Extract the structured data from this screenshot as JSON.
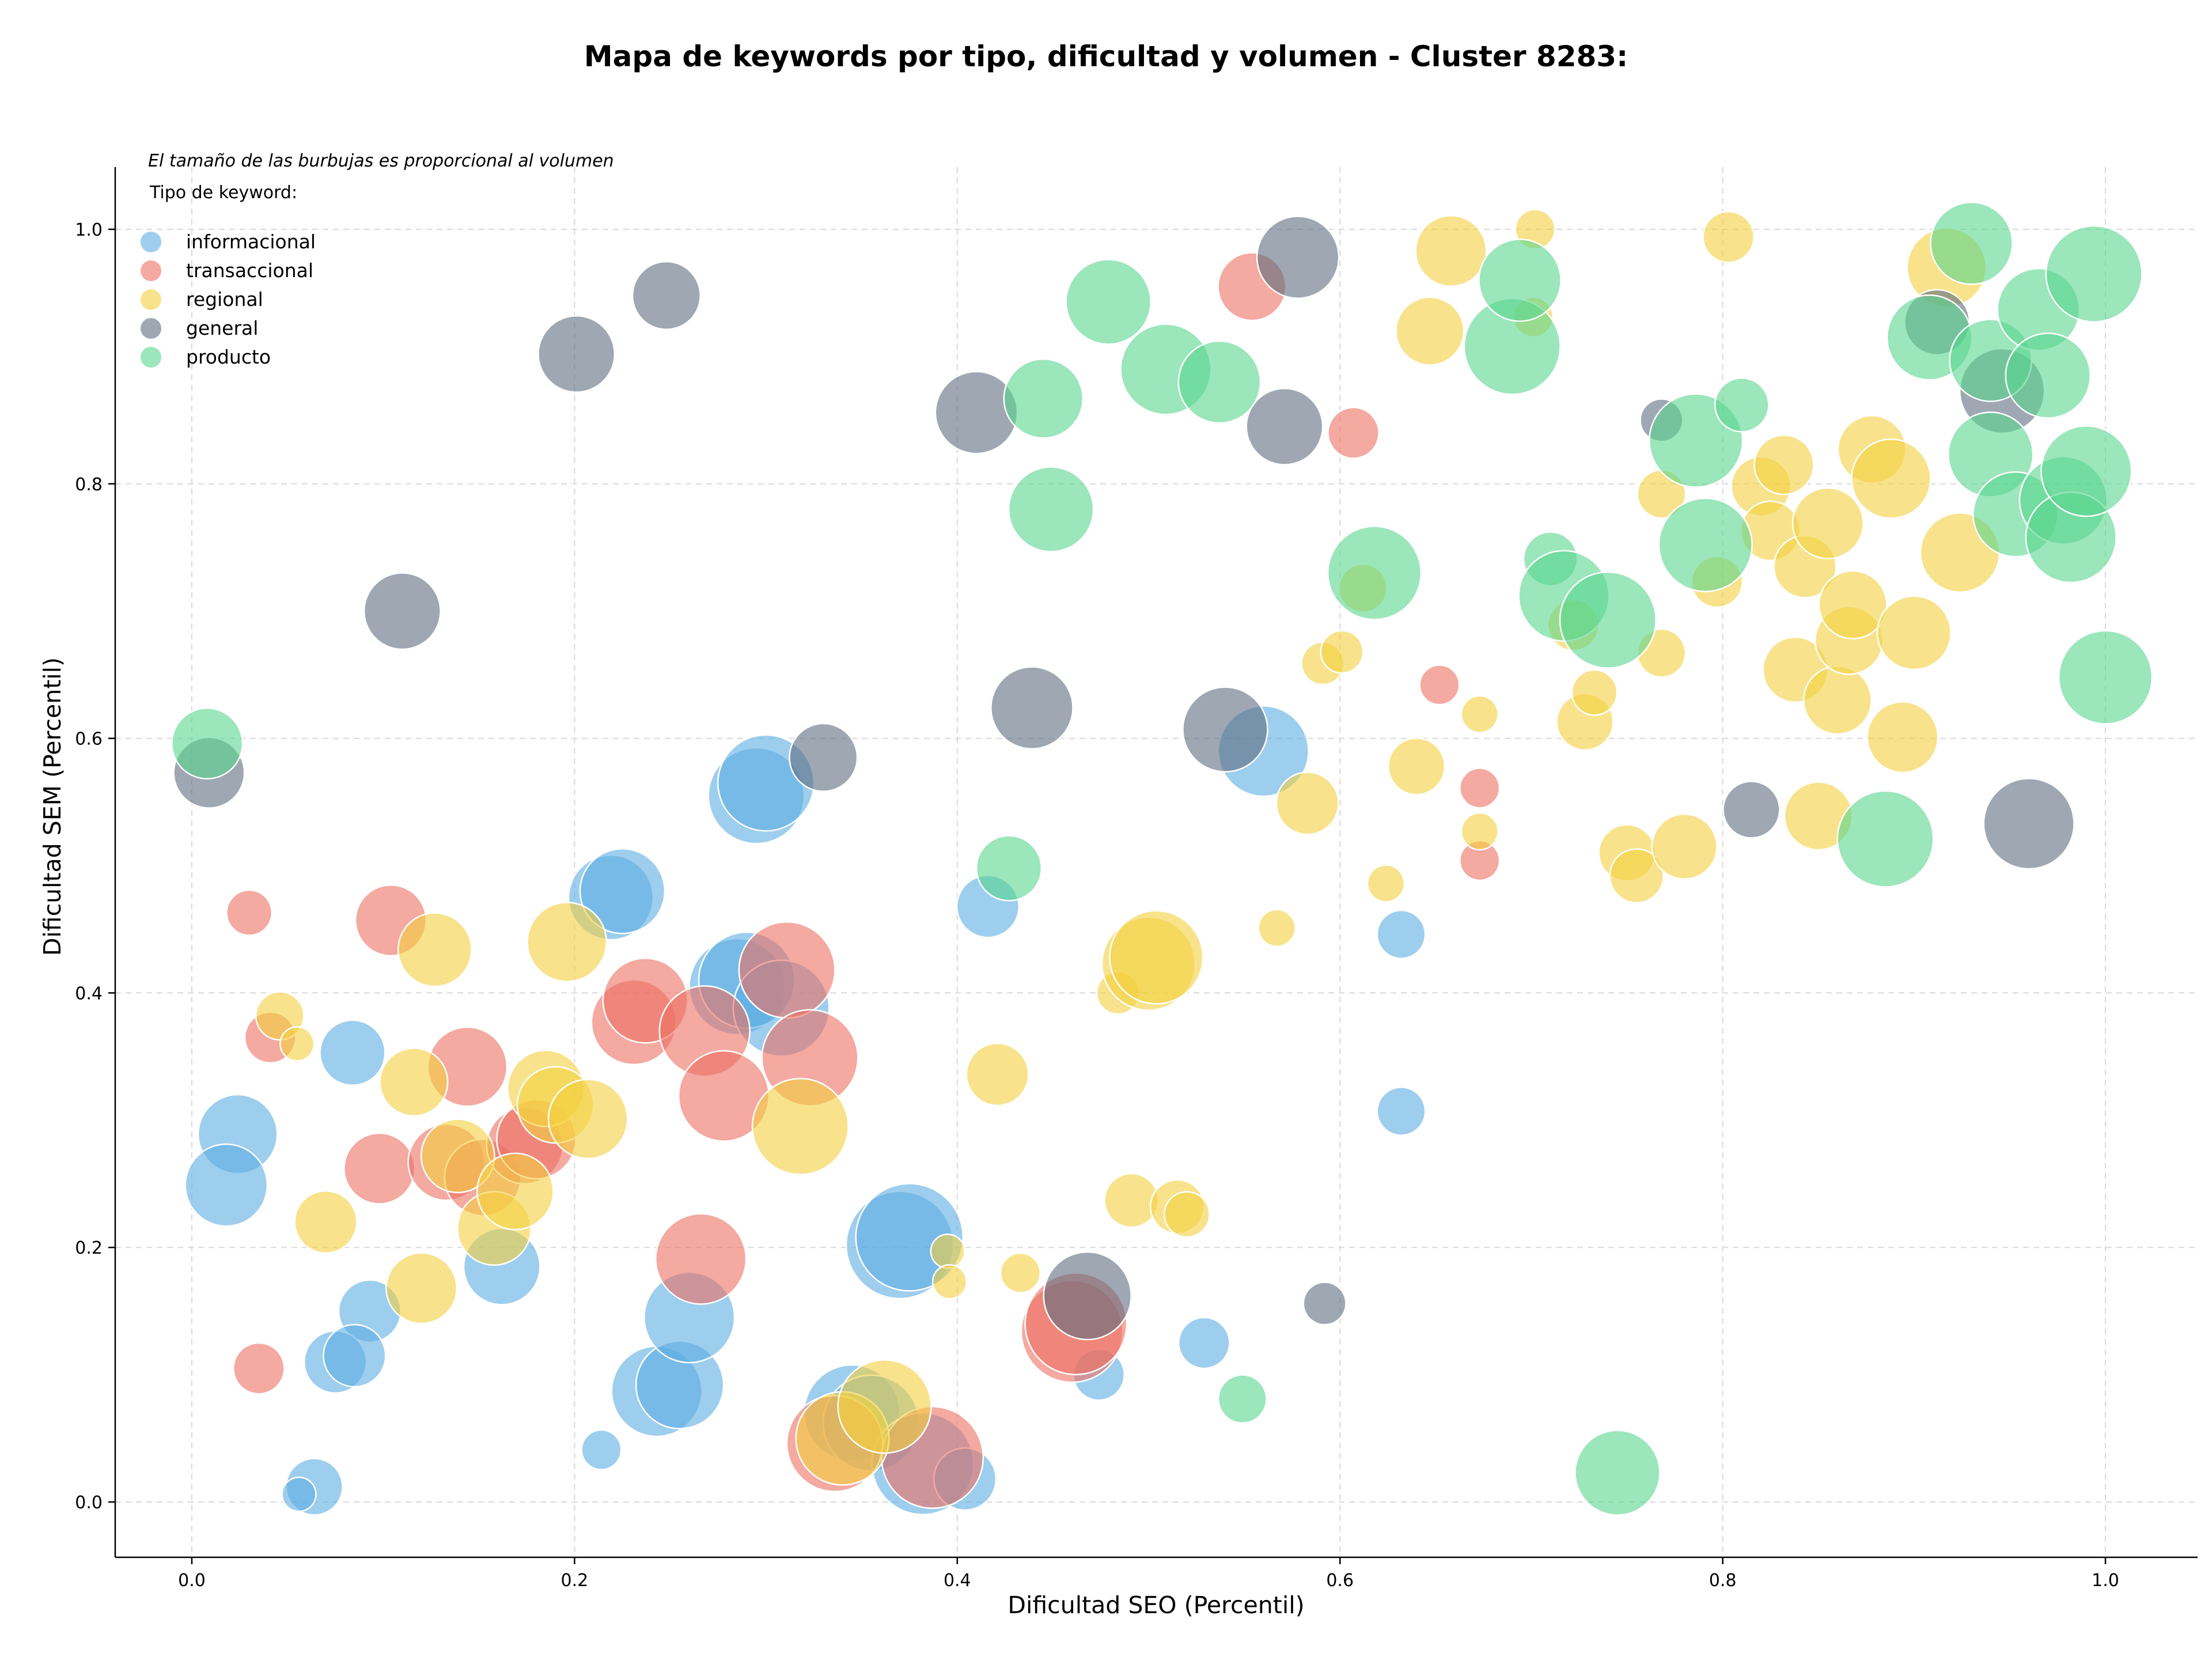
{
  "chart_data": {
    "type": "scatter",
    "title": "Mapa de keywords por tipo, dificultad y volumen - Cluster 8283:",
    "xlabel": "Dificultad SEO (Percentil)",
    "ylabel": "Dificultad SEM (Percentil)",
    "xlim": [
      -0.04,
      1.05
    ],
    "ylim": [
      -0.04,
      1.05
    ],
    "xticks": [
      "0.0",
      "0.2",
      "0.4",
      "0.6",
      "0.8",
      "1.0"
    ],
    "yticks": [
      "0.0",
      "0.2",
      "0.4",
      "0.6",
      "0.8",
      "1.0"
    ],
    "grid": true,
    "legend_position": "top-left",
    "legend_title": "Tipo de keyword:",
    "note": "El tamaño de las burbujas es proporcional al volumen",
    "series": [
      {
        "name": "informacional",
        "color": "#5dade2",
        "points": [
          [
            0.024,
            0.289,
            28
          ],
          [
            0.018,
            0.249,
            29
          ],
          [
            0.084,
            0.353,
            23
          ],
          [
            0.093,
            0.15,
            22
          ],
          [
            0.075,
            0.11,
            22
          ],
          [
            0.085,
            0.115,
            22
          ],
          [
            0.064,
            0.012,
            20
          ],
          [
            0.056,
            0.006,
            12
          ],
          [
            0.162,
            0.185,
            27
          ],
          [
            0.214,
            0.041,
            14
          ],
          [
            0.219,
            0.475,
            30
          ],
          [
            0.225,
            0.48,
            30
          ],
          [
            0.243,
            0.087,
            32
          ],
          [
            0.255,
            0.092,
            31
          ],
          [
            0.26,
            0.145,
            32
          ],
          [
            0.285,
            0.405,
            34
          ],
          [
            0.29,
            0.41,
            34
          ],
          [
            0.295,
            0.555,
            34
          ],
          [
            0.3,
            0.565,
            34
          ],
          [
            0.308,
            0.388,
            34
          ],
          [
            0.345,
            0.07,
            34
          ],
          [
            0.355,
            0.062,
            34
          ],
          [
            0.37,
            0.202,
            38
          ],
          [
            0.375,
            0.208,
            38
          ],
          [
            0.382,
            0.03,
            36
          ],
          [
            0.404,
            0.018,
            22
          ],
          [
            0.416,
            0.468,
            22
          ],
          [
            0.474,
            0.1,
            18
          ],
          [
            0.529,
            0.125,
            18
          ],
          [
            0.56,
            0.59,
            32
          ],
          [
            0.632,
            0.446,
            17
          ],
          [
            0.632,
            0.307,
            17
          ]
        ]
      },
      {
        "name": "transaccional",
        "color": "#ec7063",
        "points": [
          [
            0.03,
            0.463,
            16
          ],
          [
            0.041,
            0.365,
            18
          ],
          [
            0.035,
            0.105,
            18
          ],
          [
            0.104,
            0.457,
            25
          ],
          [
            0.098,
            0.262,
            25
          ],
          [
            0.133,
            0.267,
            27
          ],
          [
            0.144,
            0.342,
            28
          ],
          [
            0.152,
            0.255,
            27
          ],
          [
            0.174,
            0.28,
            27
          ],
          [
            0.18,
            0.285,
            28
          ],
          [
            0.231,
            0.377,
            30
          ],
          [
            0.237,
            0.394,
            30
          ],
          [
            0.268,
            0.37,
            32
          ],
          [
            0.266,
            0.191,
            32
          ],
          [
            0.278,
            0.319,
            32
          ],
          [
            0.311,
            0.418,
            34
          ],
          [
            0.323,
            0.349,
            34
          ],
          [
            0.336,
            0.046,
            34
          ],
          [
            0.387,
            0.035,
            36
          ],
          [
            0.46,
            0.134,
            36
          ],
          [
            0.462,
            0.14,
            36
          ],
          [
            0.554,
            0.955,
            24
          ],
          [
            0.607,
            0.84,
            18
          ],
          [
            0.652,
            0.642,
            14
          ],
          [
            0.673,
            0.561,
            14
          ],
          [
            0.673,
            0.504,
            14
          ]
        ]
      },
      {
        "name": "regional",
        "color": "#f4d03f",
        "points": [
          [
            0.046,
            0.382,
            17
          ],
          [
            0.055,
            0.36,
            12
          ],
          [
            0.07,
            0.22,
            22
          ],
          [
            0.116,
            0.33,
            24
          ],
          [
            0.127,
            0.434,
            26
          ],
          [
            0.12,
            0.168,
            25
          ],
          [
            0.139,
            0.272,
            26
          ],
          [
            0.158,
            0.215,
            26
          ],
          [
            0.169,
            0.244,
            27
          ],
          [
            0.185,
            0.325,
            27
          ],
          [
            0.19,
            0.312,
            27
          ],
          [
            0.196,
            0.44,
            28
          ],
          [
            0.207,
            0.301,
            28
          ],
          [
            0.318,
            0.295,
            34
          ],
          [
            0.34,
            0.05,
            33
          ],
          [
            0.362,
            0.075,
            33
          ],
          [
            0.395,
            0.197,
            12
          ],
          [
            0.396,
            0.173,
            12
          ],
          [
            0.421,
            0.336,
            22
          ],
          [
            0.433,
            0.18,
            14
          ],
          [
            0.484,
            0.4,
            15
          ],
          [
            0.491,
            0.237,
            19
          ],
          [
            0.5,
            0.423,
            33
          ],
          [
            0.504,
            0.428,
            33
          ],
          [
            0.515,
            0.232,
            19
          ],
          [
            0.52,
            0.226,
            16
          ],
          [
            0.567,
            0.451,
            13
          ],
          [
            0.583,
            0.549,
            22
          ],
          [
            0.591,
            0.659,
            15
          ],
          [
            0.601,
            0.668,
            15
          ],
          [
            0.612,
            0.718,
            17
          ],
          [
            0.624,
            0.486,
            13
          ],
          [
            0.64,
            0.578,
            20
          ],
          [
            0.647,
            0.92,
            24
          ],
          [
            0.658,
            0.983,
            25
          ],
          [
            0.673,
            0.619,
            13
          ],
          [
            0.673,
            0.527,
            13
          ],
          [
            0.701,
            0.931,
            14
          ],
          [
            0.702,
            1.0,
            14
          ],
          [
            0.722,
            0.689,
            18
          ],
          [
            0.728,
            0.613,
            20
          ],
          [
            0.733,
            0.636,
            16
          ],
          [
            0.75,
            0.51,
            20
          ],
          [
            0.755,
            0.492,
            19
          ],
          [
            0.768,
            0.792,
            17
          ],
          [
            0.768,
            0.667,
            17
          ],
          [
            0.78,
            0.515,
            23
          ],
          [
            0.797,
            0.723,
            18
          ],
          [
            0.803,
            0.994,
            18
          ],
          [
            0.82,
            0.798,
            21
          ],
          [
            0.825,
            0.763,
            21
          ],
          [
            0.832,
            0.815,
            21
          ],
          [
            0.838,
            0.654,
            23
          ],
          [
            0.843,
            0.735,
            22
          ],
          [
            0.85,
            0.539,
            24
          ],
          [
            0.855,
            0.769,
            25
          ],
          [
            0.86,
            0.63,
            24
          ],
          [
            0.866,
            0.677,
            24
          ],
          [
            0.868,
            0.705,
            24
          ],
          [
            0.878,
            0.827,
            24
          ],
          [
            0.888,
            0.804,
            28
          ],
          [
            0.894,
            0.601,
            25
          ],
          [
            0.9,
            0.683,
            26
          ],
          [
            0.917,
            0.97,
            28
          ],
          [
            0.924,
            0.746,
            28
          ]
        ]
      },
      {
        "name": "general",
        "color": "#5d6d7e",
        "points": [
          [
            0.009,
            0.573,
            25
          ],
          [
            0.11,
            0.7,
            27
          ],
          [
            0.201,
            0.902,
            27
          ],
          [
            0.248,
            0.948,
            24
          ],
          [
            0.33,
            0.585,
            24
          ],
          [
            0.41,
            0.856,
            29
          ],
          [
            0.439,
            0.624,
            29
          ],
          [
            0.468,
            0.162,
            31
          ],
          [
            0.54,
            0.607,
            30
          ],
          [
            0.571,
            0.845,
            27
          ],
          [
            0.578,
            0.978,
            29
          ],
          [
            0.592,
            0.156,
            15
          ],
          [
            0.768,
            0.85,
            15
          ],
          [
            0.815,
            0.544,
            20
          ],
          [
            0.912,
            0.927,
            23
          ],
          [
            0.946,
            0.873,
            30
          ],
          [
            0.96,
            0.533,
            32
          ]
        ]
      },
      {
        "name": "producto",
        "color": "#58d68d",
        "points": [
          [
            0.008,
            0.596,
            25
          ],
          [
            0.427,
            0.498,
            23
          ],
          [
            0.445,
            0.867,
            28
          ],
          [
            0.449,
            0.78,
            30
          ],
          [
            0.479,
            0.943,
            30
          ],
          [
            0.509,
            0.89,
            32
          ],
          [
            0.537,
            0.88,
            29
          ],
          [
            0.549,
            0.081,
            17
          ],
          [
            0.618,
            0.73,
            33
          ],
          [
            0.69,
            0.908,
            34
          ],
          [
            0.694,
            0.96,
            29
          ],
          [
            0.71,
            0.741,
            19
          ],
          [
            0.717,
            0.712,
            32
          ],
          [
            0.74,
            0.693,
            34
          ],
          [
            0.745,
            0.023,
            30
          ],
          [
            0.786,
            0.834,
            33
          ],
          [
            0.791,
            0.752,
            33
          ],
          [
            0.81,
            0.862,
            19
          ],
          [
            0.885,
            0.521,
            34
          ],
          [
            0.908,
            0.915,
            30
          ],
          [
            0.93,
            0.989,
            29
          ],
          [
            0.94,
            0.823,
            30
          ],
          [
            0.94,
            0.897,
            29
          ],
          [
            0.953,
            0.776,
            30
          ],
          [
            0.965,
            0.937,
            29
          ],
          [
            0.97,
            0.885,
            30
          ],
          [
            0.978,
            0.787,
            31
          ],
          [
            0.982,
            0.758,
            32
          ],
          [
            0.99,
            0.81,
            32
          ],
          [
            0.994,
            0.965,
            34
          ],
          [
            1.0,
            0.648,
            33
          ]
        ]
      }
    ]
  }
}
